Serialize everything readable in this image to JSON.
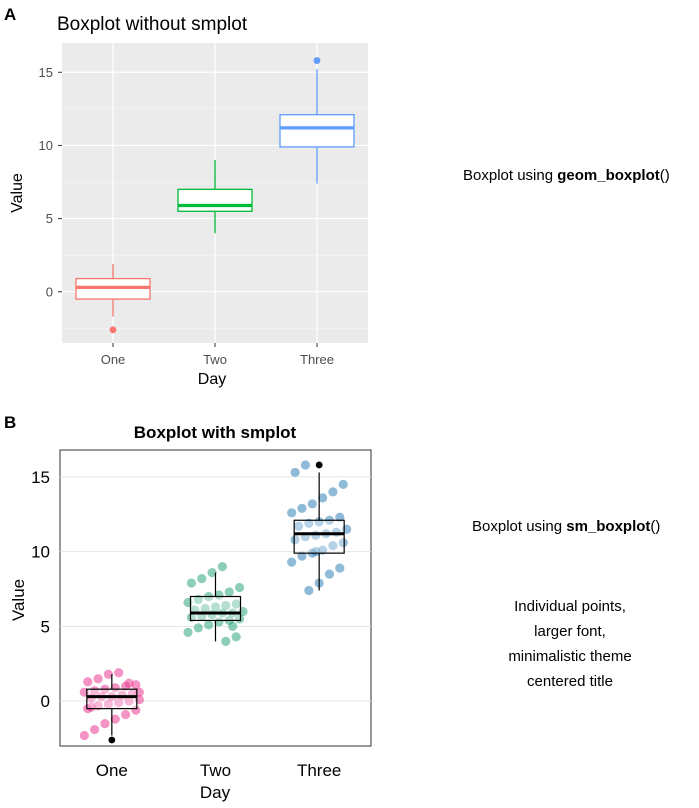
{
  "panels": {
    "a_label": "A",
    "b_label": "B"
  },
  "side_text": {
    "a_prefix": "Boxplot using ",
    "a_func": "geom_boxplot",
    "a_suffix": "()",
    "b_prefix": "Boxplot using ",
    "b_func": "sm_boxplot",
    "b_suffix": "()",
    "notes": [
      "Individual points,",
      "larger font,",
      "minimalistic theme",
      "centered title"
    ]
  },
  "chart_data": [
    {
      "type": "boxplot",
      "title": "Boxplot without smplot",
      "xlabel": "Day",
      "ylabel": "Value",
      "categories": [
        "One",
        "Two",
        "Three"
      ],
      "colors": [
        "#F8766D",
        "#00BA38",
        "#619CFF"
      ],
      "yticks": [
        0,
        5,
        10,
        15
      ],
      "ylim": [
        -3.5,
        17
      ],
      "boxes": [
        {
          "min": -1.7,
          "q1": -0.5,
          "median": 0.3,
          "q3": 0.9,
          "max": 1.9,
          "outliers": [
            -2.6
          ]
        },
        {
          "min": 4.0,
          "q1": 5.5,
          "median": 5.9,
          "q3": 7.0,
          "max": 9.0,
          "outliers": []
        },
        {
          "min": 7.4,
          "q1": 9.9,
          "median": 11.2,
          "q3": 12.1,
          "max": 15.2,
          "outliers": [
            15.8
          ]
        }
      ],
      "theme": "grey",
      "grid": true
    },
    {
      "type": "boxplot",
      "title": "Boxplot with smplot",
      "xlabel": "Day",
      "ylabel": "Value",
      "categories": [
        "One",
        "Two",
        "Three"
      ],
      "point_colors": [
        "#E7298A",
        "#1B9E77",
        "#1F78B4"
      ],
      "yticks": [
        0,
        5,
        10,
        15
      ],
      "ylim": [
        -3.0,
        16.8
      ],
      "boxes": [
        {
          "min": -2.3,
          "q1": -0.5,
          "median": 0.3,
          "q3": 0.8,
          "max": 1.8,
          "outliers": [
            -2.6
          ]
        },
        {
          "min": 4.0,
          "q1": 5.4,
          "median": 5.9,
          "q3": 7.0,
          "max": 8.6,
          "outliers": []
        },
        {
          "min": 7.4,
          "q1": 9.9,
          "median": 11.2,
          "q3": 12.1,
          "max": 15.3,
          "outliers": [
            15.8
          ]
        }
      ],
      "points": [
        [
          -2.3,
          -1.9,
          -1.5,
          -1.2,
          -0.9,
          -0.6,
          -0.5,
          -0.3,
          -0.2,
          -0.1,
          0.0,
          0.1,
          0.2,
          0.3,
          0.3,
          0.4,
          0.5,
          0.6,
          0.7,
          0.8,
          0.9,
          1.0,
          1.1,
          1.3,
          1.5,
          1.8,
          1.9,
          1.2,
          0.6,
          -0.4
        ],
        [
          4.0,
          4.3,
          4.6,
          4.9,
          5.1,
          5.3,
          5.4,
          5.5,
          5.6,
          5.7,
          5.8,
          5.9,
          5.9,
          6.0,
          6.1,
          6.2,
          6.3,
          6.4,
          6.5,
          6.6,
          6.8,
          7.0,
          7.1,
          7.3,
          7.6,
          7.9,
          8.2,
          8.6,
          9.0,
          5.0
        ],
        [
          7.4,
          7.9,
          8.5,
          8.9,
          9.3,
          9.7,
          9.9,
          10.1,
          10.4,
          10.6,
          10.8,
          11.0,
          11.1,
          11.2,
          11.3,
          11.5,
          11.7,
          11.9,
          12.0,
          12.1,
          12.3,
          12.6,
          12.9,
          13.2,
          13.6,
          14.0,
          14.5,
          15.3,
          15.8,
          10.0
        ]
      ],
      "theme": "minimal",
      "grid": true
    }
  ]
}
